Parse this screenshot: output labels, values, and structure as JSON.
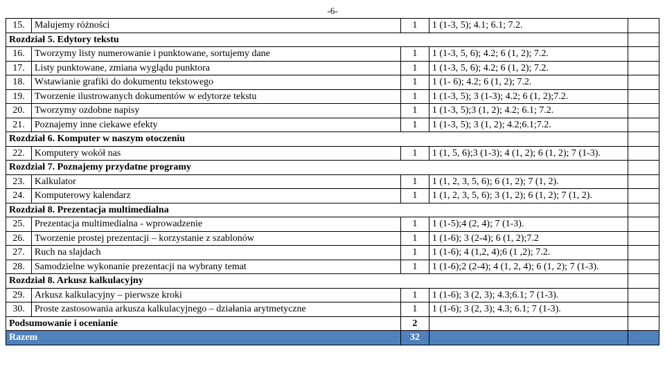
{
  "page_number": "-6-",
  "columns": {
    "num": "",
    "title": "",
    "h": "",
    "ref": "",
    "last": ""
  },
  "rows": [
    {
      "type": "item",
      "num": "15.",
      "title": "Malujemy różności",
      "h": "1",
      "ref": "1 (1-3, 5); 4.1; 6.1; 7.2."
    },
    {
      "type": "section",
      "label": "Rozdział 5. Edytory tekstu"
    },
    {
      "type": "item",
      "num": "16.",
      "title": "Tworzymy listy numerowanie i punktowane, sortujemy dane",
      "h": "1",
      "ref": "1 (1-3, 5, 6); 4.2; 6 (1, 2); 7.2."
    },
    {
      "type": "item",
      "num": "17.",
      "title": "Listy punktowane, zmiana wyglądu punktora",
      "h": "1",
      "ref": "1 (1-3, 5, 6); 4.2; 6 (1, 2); 7.2."
    },
    {
      "type": "item",
      "num": "18.",
      "title": "Wstawianie grafiki do dokumentu tekstowego",
      "h": "1",
      "ref": "1 (1- 6); 4.2; 6 (1, 2); 7.2."
    },
    {
      "type": "item",
      "num": "19.",
      "title": "Tworzenie ilustrowanych dokumentów w edytorze tekstu",
      "h": "1",
      "ref": "1 (1-3, 5); 3 (1-3); 4.2; 6 (1, 2);7.2."
    },
    {
      "type": "item",
      "num": "20.",
      "title": "Tworzymy ozdobne napisy",
      "h": "1",
      "ref": "1 (1-3, 5);3 (1, 2); 4.2; 6.1; 7.2."
    },
    {
      "type": "item",
      "num": "21.",
      "title": "Poznajemy inne ciekawe efekty",
      "h": "1",
      "ref": "1 (1-3, 5); 3 (1, 2); 4.2;6.1;7.2."
    },
    {
      "type": "section",
      "label": "Rozdział 6. Komputer w naszym otoczeniu"
    },
    {
      "type": "item",
      "num": "22.",
      "title": "Komputery wokół nas",
      "h": "1",
      "ref": "1 (1, 5, 6);3 (1-3); 4 (1, 2); 6 (1, 2); 7 (1-3)."
    },
    {
      "type": "section",
      "label": "Rozdział 7. Poznajemy przydatne programy"
    },
    {
      "type": "item",
      "num": "23.",
      "title": "Kalkulator",
      "h": "1",
      "ref": "1 (1, 2, 3, 5, 6); 6 (1, 2); 7 (1, 2)."
    },
    {
      "type": "item",
      "num": "24.",
      "title": "Komputerowy kalendarz",
      "h": "1",
      "ref": "1 (1, 2, 3, 5, 6); 3 (1, 2); 6 (1, 2); 7 (1, 2)."
    },
    {
      "type": "section",
      "label": "Rozdział 8. Prezentacja multimedialna"
    },
    {
      "type": "item",
      "num": "25.",
      "title": "Prezentacja multimedialna - wprowadzenie",
      "h": "1",
      "ref": "1 (1-5);4 (2, 4); 7 (1-3)."
    },
    {
      "type": "item",
      "num": "26.",
      "title": "Tworzenie prostej prezentacji – korzystanie z szablonów",
      "h": "1",
      "ref": "1 (1-6); 3 (2-4); 6 (1, 2);7.2"
    },
    {
      "type": "item",
      "num": "27.",
      "title": "Ruch na slajdach",
      "h": "1",
      "ref": "1 (1-6); 4 (1,2, 4);6 (1 ,2); 7.2."
    },
    {
      "type": "item",
      "num": "28.",
      "title": "Samodzielne wykonanie prezentacji na wybrany temat",
      "h": "1",
      "ref": "1 (1-6);2 (2-4); 4 (1, 2, 4); 6 (1, 2); 7 (1-3)."
    },
    {
      "type": "section",
      "label": "Rozdział 8. Arkusz kalkulacyjny"
    },
    {
      "type": "item",
      "num": "29.",
      "title": "Arkusz kalkulacyjny – pierwsze kroki",
      "h": "1",
      "ref": "1 (1-6); 3 (2, 3); 4.3;6.1; 7 (1-3)."
    },
    {
      "type": "item",
      "num": "30.",
      "title": "Proste zastosowania arkusza kalkulacyjnego – działania arytmetyczne",
      "h": "1",
      "ref": "1 (1-6);  3 (2, 3); 4.3; 6.1; 7 (1-3)."
    },
    {
      "type": "summary",
      "label": "Podsumowanie i ocenianie",
      "h": "2"
    },
    {
      "type": "razem",
      "label": "Razem",
      "h": "32"
    }
  ]
}
